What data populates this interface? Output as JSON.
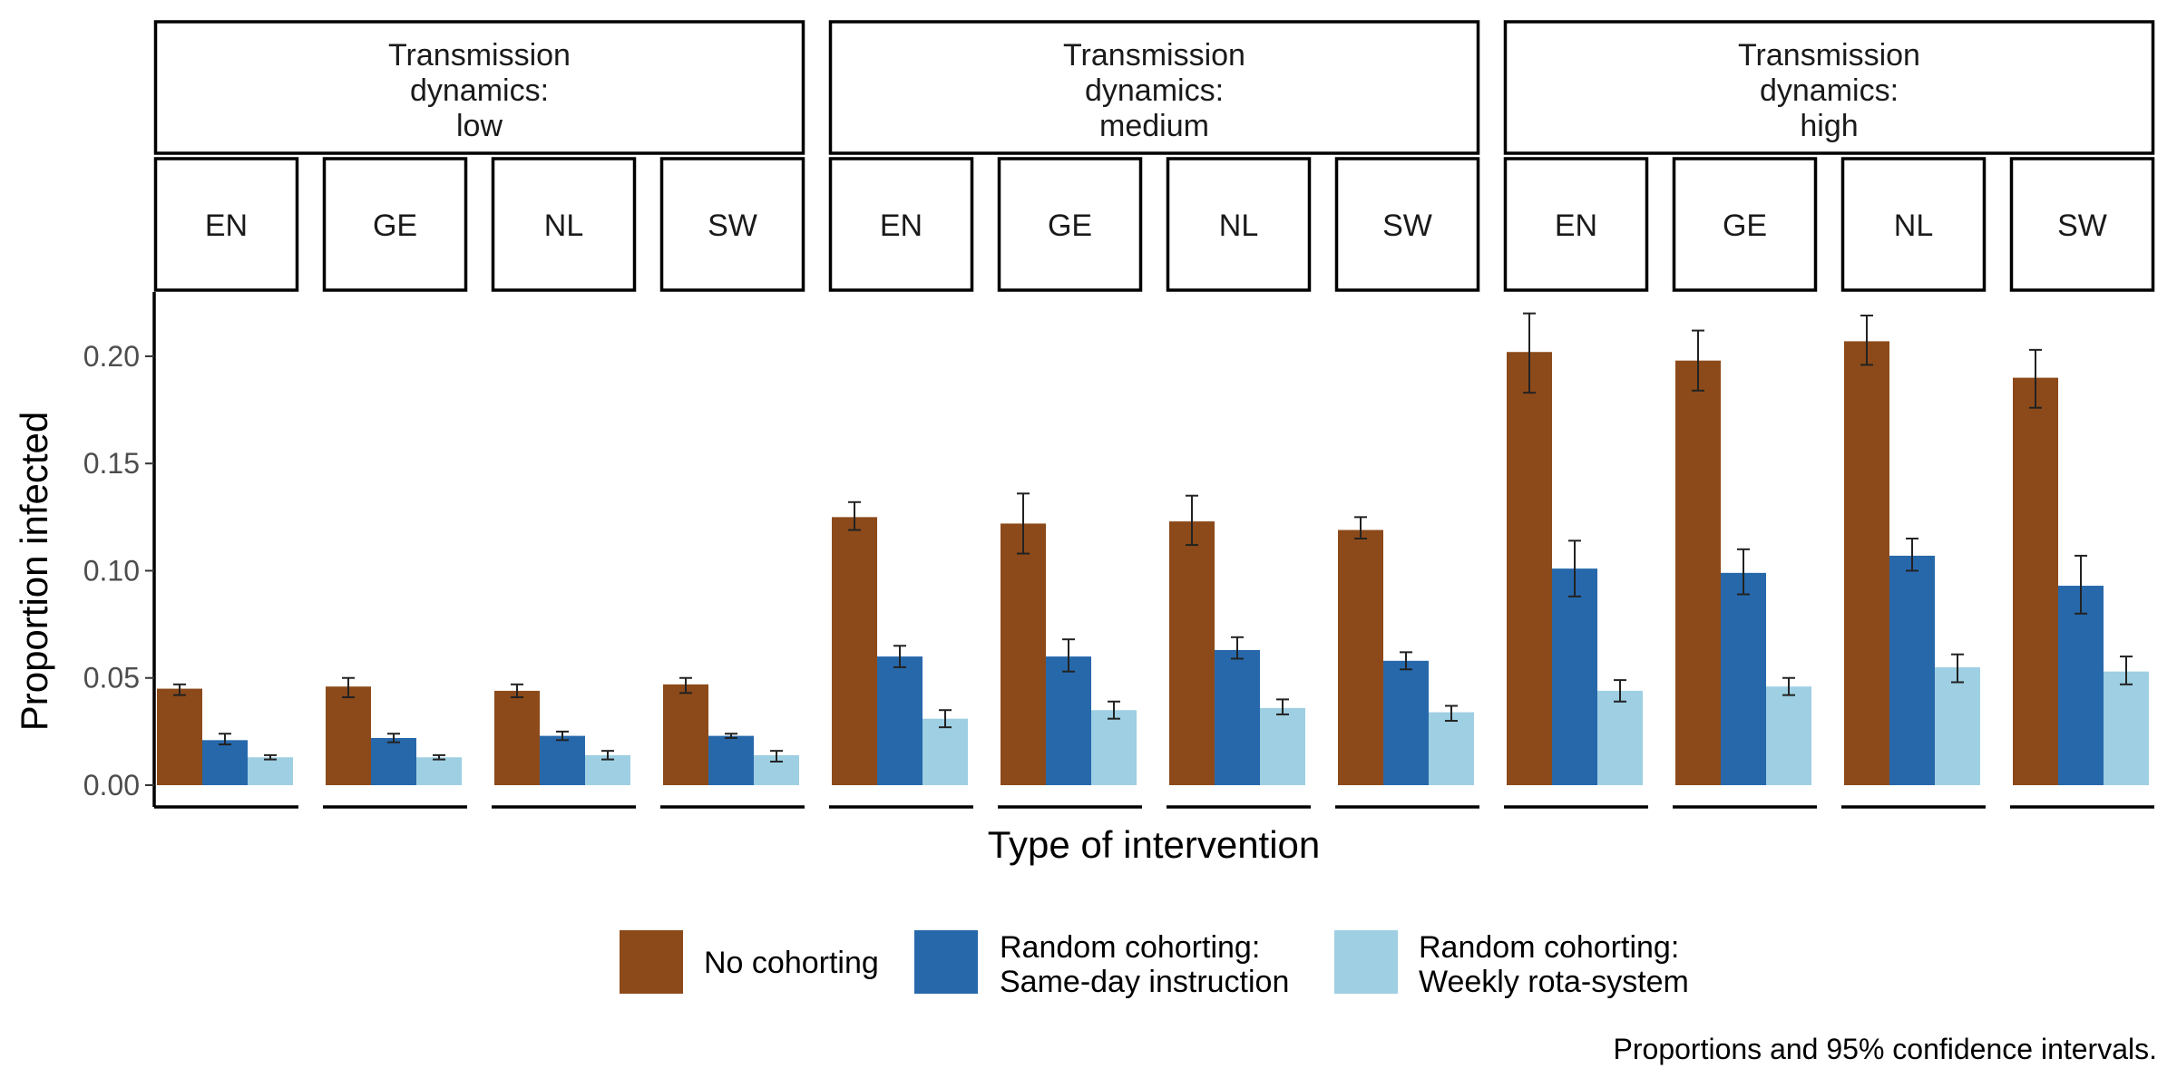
{
  "chart_data": {
    "type": "bar",
    "ylabel": "Proportion infected",
    "xlabel": "Type of intervention",
    "caption": "Proportions and 95% confidence intervals.",
    "ylim": [
      0,
      0.23
    ],
    "yticks": [
      0,
      0.05,
      0.1,
      0.15,
      0.2
    ],
    "ytick_labels": [
      "0.00",
      "0.05",
      "0.10",
      "0.15",
      "0.20"
    ],
    "grid": false,
    "legend_position": "bottom",
    "series": [
      {
        "name": "No cohorting",
        "color": "#8c4a1a"
      },
      {
        "name": "Random cohorting:\nSame-day instruction",
        "color": "#2768ab"
      },
      {
        "name": "Random cohorting:\nWeekly rota-system",
        "color": "#9ecfe3"
      }
    ],
    "groups": [
      {
        "label": "Transmission\ndynamics:\nlow",
        "panels": [
          {
            "label": "EN",
            "values": [
              0.045,
              0.021,
              0.013
            ],
            "lower": [
              0.042,
              0.019,
              0.012
            ],
            "upper": [
              0.047,
              0.024,
              0.014
            ]
          },
          {
            "label": "GE",
            "values": [
              0.046,
              0.022,
              0.013
            ],
            "lower": [
              0.041,
              0.02,
              0.012
            ],
            "upper": [
              0.05,
              0.024,
              0.014
            ]
          },
          {
            "label": "NL",
            "values": [
              0.044,
              0.023,
              0.014
            ],
            "lower": [
              0.041,
              0.021,
              0.012
            ],
            "upper": [
              0.047,
              0.025,
              0.016
            ]
          },
          {
            "label": "SW",
            "values": [
              0.047,
              0.023,
              0.014
            ],
            "lower": [
              0.043,
              0.022,
              0.011
            ],
            "upper": [
              0.05,
              0.024,
              0.016
            ]
          }
        ]
      },
      {
        "label": "Transmission\ndynamics:\nmedium",
        "panels": [
          {
            "label": "EN",
            "values": [
              0.125,
              0.06,
              0.031
            ],
            "lower": [
              0.119,
              0.055,
              0.027
            ],
            "upper": [
              0.132,
              0.065,
              0.035
            ]
          },
          {
            "label": "GE",
            "values": [
              0.122,
              0.06,
              0.035
            ],
            "lower": [
              0.108,
              0.053,
              0.031
            ],
            "upper": [
              0.136,
              0.068,
              0.039
            ]
          },
          {
            "label": "NL",
            "values": [
              0.123,
              0.063,
              0.036
            ],
            "lower": [
              0.112,
              0.059,
              0.033
            ],
            "upper": [
              0.135,
              0.069,
              0.04
            ]
          },
          {
            "label": "SW",
            "values": [
              0.119,
              0.058,
              0.034
            ],
            "lower": [
              0.115,
              0.054,
              0.03
            ],
            "upper": [
              0.125,
              0.062,
              0.037
            ]
          }
        ]
      },
      {
        "label": "Transmission\ndynamics:\nhigh",
        "panels": [
          {
            "label": "EN",
            "values": [
              0.202,
              0.101,
              0.044
            ],
            "lower": [
              0.183,
              0.088,
              0.039
            ],
            "upper": [
              0.22,
              0.114,
              0.049
            ]
          },
          {
            "label": "GE",
            "values": [
              0.198,
              0.099,
              0.046
            ],
            "lower": [
              0.184,
              0.089,
              0.042
            ],
            "upper": [
              0.212,
              0.11,
              0.05
            ]
          },
          {
            "label": "NL",
            "values": [
              0.207,
              0.107,
              0.055
            ],
            "lower": [
              0.196,
              0.1,
              0.048
            ],
            "upper": [
              0.219,
              0.115,
              0.061
            ]
          },
          {
            "label": "SW",
            "values": [
              0.19,
              0.093,
              0.053
            ],
            "lower": [
              0.176,
              0.08,
              0.047
            ],
            "upper": [
              0.203,
              0.107,
              0.06
            ]
          }
        ]
      }
    ]
  }
}
